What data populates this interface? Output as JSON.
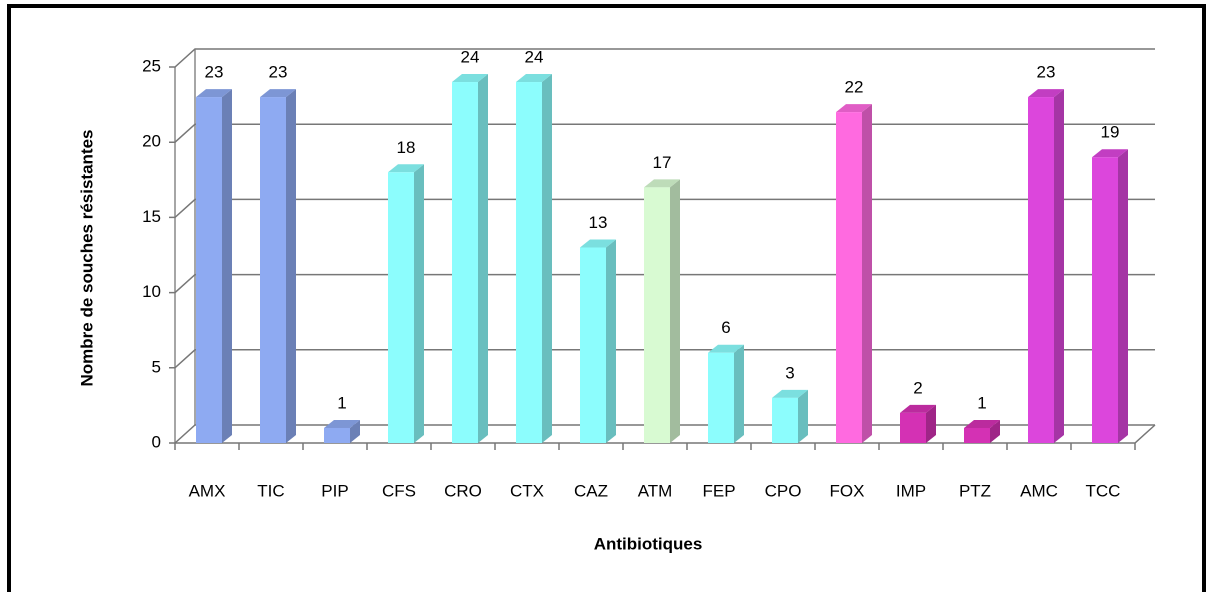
{
  "chart_data": {
    "type": "bar3d",
    "y_label": "Nombre de souches résistantes",
    "x_label": "Antibiotiques",
    "categories": [
      "AMX",
      "TIC",
      "PIP",
      "CFS",
      "CRO",
      "CTX",
      "CAZ",
      "ATM",
      "FEP",
      "CPO",
      "FOX",
      "IMP",
      "PTZ",
      "AMC",
      "TCC"
    ],
    "values": [
      23,
      23,
      1,
      18,
      24,
      24,
      13,
      17,
      6,
      3,
      22,
      2,
      1,
      23,
      19
    ],
    "colors": [
      "#8eaaf2",
      "#8eaaf2",
      "#8eaaf2",
      "#8cfdfd",
      "#8cfdfd",
      "#8cfdfd",
      "#8cfdfd",
      "#d8fad2",
      "#8cfdfd",
      "#8cfdfd",
      "#ff6ae0",
      "#d431b4",
      "#d431b4",
      "#dc46dc",
      "#dc46dc"
    ],
    "ylim": [
      0,
      25
    ],
    "yticks": [
      0,
      5,
      10,
      15,
      20,
      25
    ],
    "grid": true
  }
}
